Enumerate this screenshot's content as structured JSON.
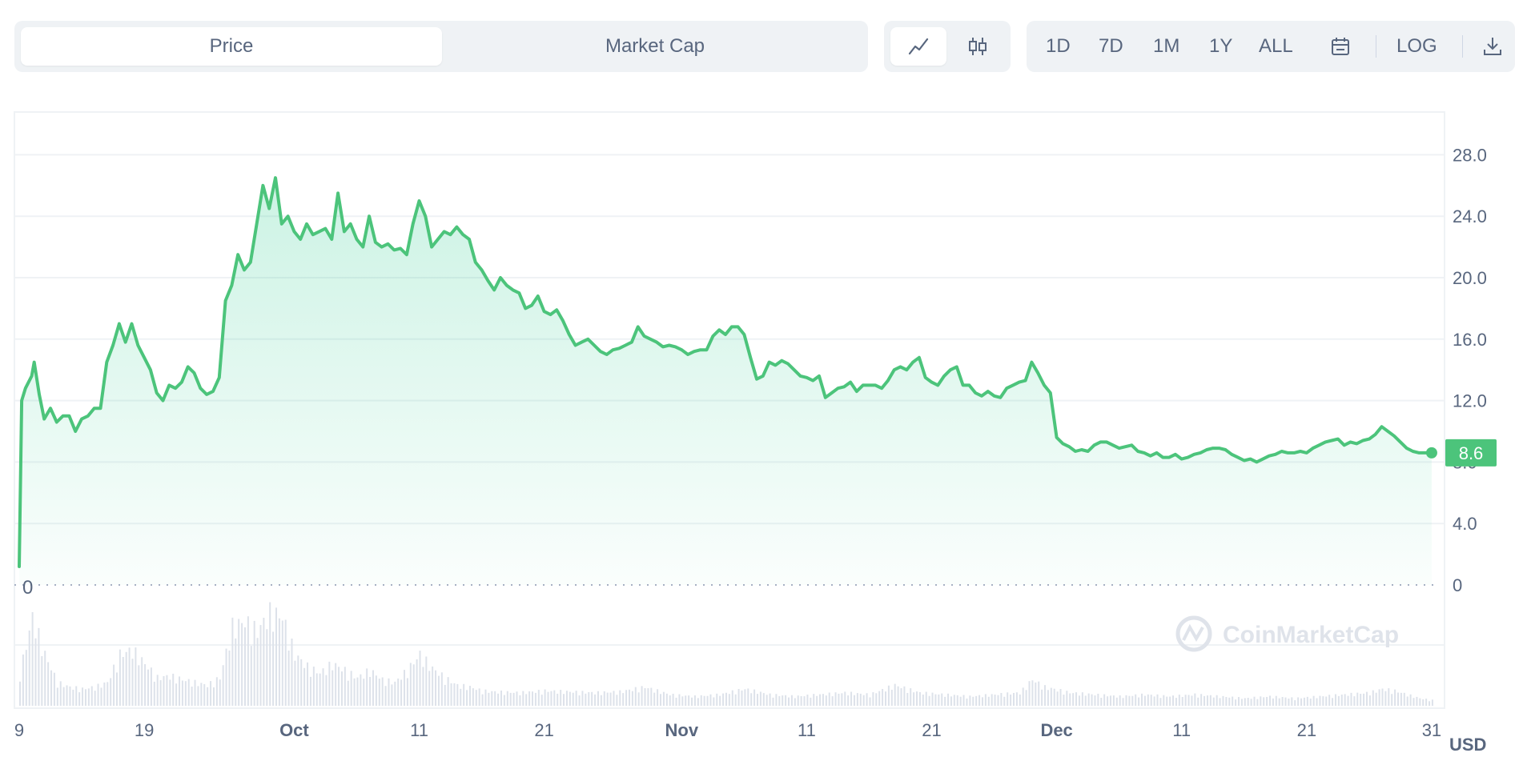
{
  "toolbar": {
    "metric_tabs": [
      "Price",
      "Market Cap"
    ],
    "active_metric": "Price",
    "chart_type_icons": [
      "line-chart-icon",
      "candlestick-icon"
    ],
    "timeframes": [
      "1D",
      "7D",
      "1M",
      "1Y",
      "ALL"
    ],
    "calendar_icon": "calendar-icon",
    "log_label": "LOG",
    "download_icon": "download-icon"
  },
  "currency": "USD",
  "watermark": "CoinMarketCap",
  "current_price_label": "8.6",
  "colors": {
    "line": "#4cc47b",
    "fill": "#16c784",
    "price_badge": "#4cc47b",
    "volume": "#cfd6e4",
    "grid": "#eff2f5",
    "text": "#58667e"
  },
  "chart_data": {
    "type": "area",
    "title": "",
    "xlabel": "",
    "ylabel": "",
    "ylim": [
      0,
      30
    ],
    "yticks": [
      0,
      4.0,
      8.0,
      12.0,
      16.0,
      20.0,
      24.0,
      28.0
    ],
    "ytick_labels": [
      "0",
      "4.0",
      "8.0",
      "12.0",
      "16.0",
      "20.0",
      "24.0",
      "28.0"
    ],
    "x_tick_labels": [
      {
        "day": 0,
        "label": "9",
        "bold": false
      },
      {
        "day": 10,
        "label": "19",
        "bold": false
      },
      {
        "day": 22,
        "label": "Oct",
        "bold": true
      },
      {
        "day": 32,
        "label": "11",
        "bold": false
      },
      {
        "day": 42,
        "label": "21",
        "bold": false
      },
      {
        "day": 53,
        "label": "Nov",
        "bold": true
      },
      {
        "day": 63,
        "label": "11",
        "bold": false
      },
      {
        "day": 73,
        "label": "21",
        "bold": false
      },
      {
        "day": 83,
        "label": "Dec",
        "bold": true
      },
      {
        "day": 93,
        "label": "11",
        "bold": false
      },
      {
        "day": 103,
        "label": "21",
        "bold": false
      },
      {
        "day": 113,
        "label": "31",
        "bold": false
      }
    ],
    "grid": true,
    "series": [
      {
        "values": [
          [
            0,
            1.2
          ],
          [
            0.2,
            12.0
          ],
          [
            0.5,
            12.8
          ],
          [
            1.0,
            13.6
          ],
          [
            1.2,
            14.5
          ],
          [
            1.6,
            12.4
          ],
          [
            2.0,
            10.8
          ],
          [
            2.5,
            11.5
          ],
          [
            3.0,
            10.6
          ],
          [
            3.5,
            11.0
          ],
          [
            4.0,
            11.0
          ],
          [
            4.5,
            10.0
          ],
          [
            5.0,
            10.8
          ],
          [
            5.5,
            11.0
          ],
          [
            6.0,
            11.5
          ],
          [
            6.5,
            11.5
          ],
          [
            7.0,
            14.5
          ],
          [
            7.5,
            15.6
          ],
          [
            8.0,
            17.0
          ],
          [
            8.5,
            15.8
          ],
          [
            9.0,
            17.0
          ],
          [
            9.5,
            15.6
          ],
          [
            10.0,
            14.8
          ],
          [
            10.5,
            14.0
          ],
          [
            11.0,
            12.5
          ],
          [
            11.5,
            12.0
          ],
          [
            12.0,
            13.0
          ],
          [
            12.5,
            12.8
          ],
          [
            13.0,
            13.2
          ],
          [
            13.5,
            14.2
          ],
          [
            14.0,
            13.8
          ],
          [
            14.5,
            12.8
          ],
          [
            15.0,
            12.4
          ],
          [
            15.5,
            12.6
          ],
          [
            16.0,
            13.5
          ],
          [
            16.5,
            18.5
          ],
          [
            17.0,
            19.5
          ],
          [
            17.5,
            21.5
          ],
          [
            18.0,
            20.5
          ],
          [
            18.5,
            21.0
          ],
          [
            19.0,
            23.5
          ],
          [
            19.5,
            26.0
          ],
          [
            20.0,
            24.5
          ],
          [
            20.5,
            26.5
          ],
          [
            21.0,
            23.5
          ],
          [
            21.5,
            24.0
          ],
          [
            22.0,
            23.0
          ],
          [
            22.5,
            22.5
          ],
          [
            23.0,
            23.5
          ],
          [
            23.5,
            22.8
          ],
          [
            24.0,
            23.0
          ],
          [
            24.5,
            23.2
          ],
          [
            25.0,
            22.5
          ],
          [
            25.5,
            25.5
          ],
          [
            26.0,
            23.0
          ],
          [
            26.5,
            23.5
          ],
          [
            27.0,
            22.5
          ],
          [
            27.5,
            22.0
          ],
          [
            28.0,
            24.0
          ],
          [
            28.5,
            22.3
          ],
          [
            29.0,
            22.0
          ],
          [
            29.5,
            22.2
          ],
          [
            30.0,
            21.8
          ],
          [
            30.5,
            21.9
          ],
          [
            31.0,
            21.5
          ],
          [
            31.5,
            23.5
          ],
          [
            32.0,
            25.0
          ],
          [
            32.5,
            24.0
          ],
          [
            33.0,
            22.0
          ],
          [
            33.5,
            22.5
          ],
          [
            34.0,
            23.0
          ],
          [
            34.5,
            22.8
          ],
          [
            35.0,
            23.3
          ],
          [
            35.5,
            22.8
          ],
          [
            36.0,
            22.5
          ],
          [
            36.5,
            21.0
          ],
          [
            37.0,
            20.5
          ],
          [
            37.5,
            19.8
          ],
          [
            38.0,
            19.2
          ],
          [
            38.5,
            20.0
          ],
          [
            39.0,
            19.5
          ],
          [
            39.5,
            19.2
          ],
          [
            40.0,
            19.0
          ],
          [
            40.5,
            18.0
          ],
          [
            41.0,
            18.2
          ],
          [
            41.5,
            18.8
          ],
          [
            42.0,
            17.8
          ],
          [
            42.5,
            17.6
          ],
          [
            43.0,
            17.9
          ],
          [
            43.5,
            17.2
          ],
          [
            44.0,
            16.3
          ],
          [
            44.5,
            15.6
          ],
          [
            45.0,
            15.8
          ],
          [
            45.5,
            16.0
          ],
          [
            46.0,
            15.6
          ],
          [
            46.5,
            15.2
          ],
          [
            47.0,
            15.0
          ],
          [
            47.5,
            15.3
          ],
          [
            48.0,
            15.4
          ],
          [
            48.5,
            15.6
          ],
          [
            49.0,
            15.8
          ],
          [
            49.5,
            16.8
          ],
          [
            50.0,
            16.2
          ],
          [
            50.5,
            16.0
          ],
          [
            51.0,
            15.8
          ],
          [
            51.5,
            15.5
          ],
          [
            52.0,
            15.6
          ],
          [
            52.5,
            15.5
          ],
          [
            53.0,
            15.3
          ],
          [
            53.5,
            15.0
          ],
          [
            54.0,
            15.2
          ],
          [
            54.5,
            15.3
          ],
          [
            55.0,
            15.3
          ],
          [
            55.5,
            16.2
          ],
          [
            56.0,
            16.6
          ],
          [
            56.5,
            16.3
          ],
          [
            57.0,
            16.8
          ],
          [
            57.5,
            16.8
          ],
          [
            58.0,
            16.3
          ],
          [
            58.5,
            14.8
          ],
          [
            59.0,
            13.4
          ],
          [
            59.5,
            13.6
          ],
          [
            60.0,
            14.5
          ],
          [
            60.5,
            14.3
          ],
          [
            61.0,
            14.6
          ],
          [
            61.5,
            14.4
          ],
          [
            62.0,
            14.0
          ],
          [
            62.5,
            13.6
          ],
          [
            63.0,
            13.5
          ],
          [
            63.5,
            13.3
          ],
          [
            64.0,
            13.6
          ],
          [
            64.5,
            12.2
          ],
          [
            65.0,
            12.5
          ],
          [
            65.5,
            12.8
          ],
          [
            66.0,
            12.9
          ],
          [
            66.5,
            13.2
          ],
          [
            67.0,
            12.6
          ],
          [
            67.5,
            13.0
          ],
          [
            68.0,
            13.0
          ],
          [
            68.5,
            13.0
          ],
          [
            69.0,
            12.8
          ],
          [
            69.5,
            13.3
          ],
          [
            70.0,
            14.0
          ],
          [
            70.5,
            14.2
          ],
          [
            71.0,
            14.0
          ],
          [
            71.5,
            14.5
          ],
          [
            72.0,
            14.8
          ],
          [
            72.5,
            13.5
          ],
          [
            73.0,
            13.2
          ],
          [
            73.5,
            13.0
          ],
          [
            74.0,
            13.6
          ],
          [
            74.5,
            14.0
          ],
          [
            75.0,
            14.2
          ],
          [
            75.5,
            13.0
          ],
          [
            76.0,
            13.0
          ],
          [
            76.5,
            12.5
          ],
          [
            77.0,
            12.3
          ],
          [
            77.5,
            12.6
          ],
          [
            78.0,
            12.3
          ],
          [
            78.5,
            12.2
          ],
          [
            79.0,
            12.8
          ],
          [
            79.5,
            13.0
          ],
          [
            80.0,
            13.2
          ],
          [
            80.5,
            13.3
          ],
          [
            81.0,
            14.5
          ],
          [
            81.5,
            13.8
          ],
          [
            82.0,
            13.0
          ],
          [
            82.5,
            12.5
          ],
          [
            83.0,
            9.6
          ],
          [
            83.5,
            9.2
          ],
          [
            84.0,
            9.0
          ],
          [
            84.5,
            8.7
          ],
          [
            85.0,
            8.8
          ],
          [
            85.5,
            8.7
          ],
          [
            86.0,
            9.1
          ],
          [
            86.5,
            9.3
          ],
          [
            87.0,
            9.3
          ],
          [
            87.5,
            9.1
          ],
          [
            88.0,
            8.9
          ],
          [
            88.5,
            9.0
          ],
          [
            89.0,
            9.1
          ],
          [
            89.5,
            8.7
          ],
          [
            90.0,
            8.6
          ],
          [
            90.5,
            8.4
          ],
          [
            91.0,
            8.6
          ],
          [
            91.5,
            8.3
          ],
          [
            92.0,
            8.3
          ],
          [
            92.5,
            8.5
          ],
          [
            93.0,
            8.2
          ],
          [
            93.5,
            8.3
          ],
          [
            94.0,
            8.5
          ],
          [
            94.5,
            8.6
          ],
          [
            95.0,
            8.8
          ],
          [
            95.5,
            8.9
          ],
          [
            96.0,
            8.9
          ],
          [
            96.5,
            8.8
          ],
          [
            97.0,
            8.5
          ],
          [
            97.5,
            8.3
          ],
          [
            98.0,
            8.1
          ],
          [
            98.5,
            8.2
          ],
          [
            99.0,
            8.0
          ],
          [
            99.5,
            8.2
          ],
          [
            100.0,
            8.4
          ],
          [
            100.5,
            8.5
          ],
          [
            101.0,
            8.7
          ],
          [
            101.5,
            8.6
          ],
          [
            102.0,
            8.6
          ],
          [
            102.5,
            8.7
          ],
          [
            103.0,
            8.6
          ],
          [
            103.5,
            8.9
          ],
          [
            104.0,
            9.1
          ],
          [
            104.5,
            9.3
          ],
          [
            105.0,
            9.4
          ],
          [
            105.5,
            9.5
          ],
          [
            106.0,
            9.1
          ],
          [
            106.5,
            9.3
          ],
          [
            107.0,
            9.2
          ],
          [
            107.5,
            9.4
          ],
          [
            108.0,
            9.5
          ],
          [
            108.5,
            9.8
          ],
          [
            109.0,
            10.3
          ],
          [
            109.5,
            10.0
          ],
          [
            110.0,
            9.7
          ],
          [
            110.5,
            9.3
          ],
          [
            111.0,
            8.9
          ],
          [
            111.5,
            8.7
          ],
          [
            112.0,
            8.6
          ],
          [
            113.0,
            8.6
          ]
        ]
      }
    ],
    "volume_relative": [
      [
        0,
        0.35
      ],
      [
        1.0,
        0.95
      ],
      [
        2.0,
        0.55
      ],
      [
        3.0,
        0.25
      ],
      [
        4.0,
        0.2
      ],
      [
        5.0,
        0.18
      ],
      [
        6.0,
        0.2
      ],
      [
        7.0,
        0.25
      ],
      [
        8.0,
        0.55
      ],
      [
        9.0,
        0.6
      ],
      [
        10.0,
        0.45
      ],
      [
        11.0,
        0.3
      ],
      [
        12.0,
        0.32
      ],
      [
        13.0,
        0.28
      ],
      [
        14.0,
        0.25
      ],
      [
        15.0,
        0.22
      ],
      [
        16.0,
        0.3
      ],
      [
        17.0,
        0.85
      ],
      [
        18.0,
        0.9
      ],
      [
        19.0,
        0.8
      ],
      [
        20.0,
        1.0
      ],
      [
        21.0,
        0.95
      ],
      [
        22.0,
        0.55
      ],
      [
        23.0,
        0.42
      ],
      [
        24.0,
        0.35
      ],
      [
        25.0,
        0.45
      ],
      [
        26.0,
        0.38
      ],
      [
        27.0,
        0.3
      ],
      [
        28.0,
        0.38
      ],
      [
        29.0,
        0.28
      ],
      [
        30.0,
        0.25
      ],
      [
        31.0,
        0.38
      ],
      [
        32.0,
        0.55
      ],
      [
        33.0,
        0.4
      ],
      [
        34.0,
        0.3
      ],
      [
        35.0,
        0.22
      ],
      [
        36.0,
        0.2
      ],
      [
        37.0,
        0.16
      ],
      [
        38.0,
        0.15
      ],
      [
        40.0,
        0.14
      ],
      [
        42.0,
        0.16
      ],
      [
        44.0,
        0.15
      ],
      [
        46.0,
        0.14
      ],
      [
        48.0,
        0.15
      ],
      [
        50.0,
        0.2
      ],
      [
        52.0,
        0.12
      ],
      [
        54.0,
        0.1
      ],
      [
        56.0,
        0.12
      ],
      [
        58.0,
        0.18
      ],
      [
        60.0,
        0.12
      ],
      [
        62.0,
        0.1
      ],
      [
        64.0,
        0.12
      ],
      [
        66.0,
        0.14
      ],
      [
        68.0,
        0.12
      ],
      [
        70.0,
        0.22
      ],
      [
        72.0,
        0.14
      ],
      [
        74.0,
        0.12
      ],
      [
        76.0,
        0.1
      ],
      [
        78.0,
        0.12
      ],
      [
        80.0,
        0.14
      ],
      [
        81.0,
        0.28
      ],
      [
        82.0,
        0.2
      ],
      [
        84.0,
        0.14
      ],
      [
        86.0,
        0.12
      ],
      [
        88.0,
        0.1
      ],
      [
        90.0,
        0.12
      ],
      [
        92.0,
        0.1
      ],
      [
        94.0,
        0.12
      ],
      [
        96.0,
        0.1
      ],
      [
        98.0,
        0.08
      ],
      [
        100.0,
        0.1
      ],
      [
        102.0,
        0.08
      ],
      [
        104.0,
        0.1
      ],
      [
        106.0,
        0.12
      ],
      [
        108.0,
        0.14
      ],
      [
        109.0,
        0.18
      ],
      [
        110.0,
        0.16
      ],
      [
        111.0,
        0.12
      ],
      [
        112.0,
        0.08
      ],
      [
        113.0,
        0.06
      ]
    ]
  }
}
